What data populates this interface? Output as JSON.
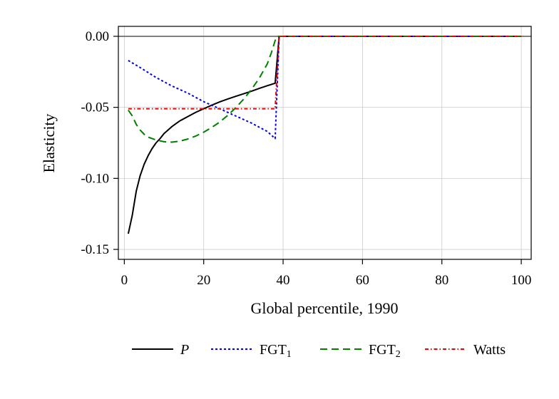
{
  "chart_data": {
    "type": "line",
    "title": "",
    "xlabel": "Global percentile, 1990",
    "ylabel": "Elasticity",
    "xlim": [
      -1.5,
      102.5
    ],
    "ylim": [
      -0.157,
      0.007
    ],
    "xticks": [
      0,
      20,
      40,
      60,
      80,
      100
    ],
    "xtick_labels": [
      "0",
      "20",
      "40",
      "60",
      "80",
      "100"
    ],
    "yticks": [
      0.0,
      -0.05,
      -0.1,
      -0.15
    ],
    "ytick_labels": [
      "0.00",
      "-0.05",
      "-0.10",
      "-0.15"
    ],
    "grid": true,
    "reference_line_y": 0,
    "legend_position": "bottom",
    "series": [
      {
        "name": "P",
        "name_style": "italic",
        "color": "#000000",
        "dash": "solid",
        "points": [
          [
            1,
            -0.139
          ],
          [
            2,
            -0.126
          ],
          [
            3,
            -0.109
          ],
          [
            4,
            -0.098
          ],
          [
            5,
            -0.09
          ],
          [
            6,
            -0.084
          ],
          [
            7,
            -0.079
          ],
          [
            8,
            -0.075
          ],
          [
            9,
            -0.072
          ],
          [
            10,
            -0.0685
          ],
          [
            12,
            -0.0635
          ],
          [
            14,
            -0.0595
          ],
          [
            16,
            -0.0565
          ],
          [
            18,
            -0.0535
          ],
          [
            20,
            -0.051
          ],
          [
            22,
            -0.0485
          ],
          [
            24,
            -0.0462
          ],
          [
            26,
            -0.0442
          ],
          [
            28,
            -0.0423
          ],
          [
            30,
            -0.0405
          ],
          [
            32,
            -0.0387
          ],
          [
            34,
            -0.0367
          ],
          [
            36,
            -0.0348
          ],
          [
            38,
            -0.033
          ],
          [
            39,
            0.0
          ],
          [
            100,
            0.0
          ]
        ]
      },
      {
        "name": "FGT",
        "name_sub": "1",
        "color": "#0000ee",
        "dash": "short-dash",
        "points": [
          [
            1,
            -0.017
          ],
          [
            4,
            -0.022
          ],
          [
            8,
            -0.029
          ],
          [
            12,
            -0.035
          ],
          [
            16,
            -0.04
          ],
          [
            20,
            -0.046
          ],
          [
            24,
            -0.051
          ],
          [
            28,
            -0.056
          ],
          [
            32,
            -0.061
          ],
          [
            36,
            -0.067
          ],
          [
            38,
            -0.072
          ],
          [
            39,
            0.0
          ],
          [
            100,
            0.0
          ]
        ]
      },
      {
        "name": "FGT",
        "name_sub": "2",
        "color": "#008000",
        "dash": "long-dash",
        "points": [
          [
            1,
            -0.052
          ],
          [
            2,
            -0.056
          ],
          [
            3,
            -0.062
          ],
          [
            4,
            -0.066
          ],
          [
            5,
            -0.069
          ],
          [
            6,
            -0.071
          ],
          [
            8,
            -0.073
          ],
          [
            10,
            -0.0742
          ],
          [
            12,
            -0.0745
          ],
          [
            14,
            -0.0738
          ],
          [
            16,
            -0.0723
          ],
          [
            18,
            -0.0702
          ],
          [
            20,
            -0.0675
          ],
          [
            22,
            -0.0642
          ],
          [
            24,
            -0.0604
          ],
          [
            26,
            -0.0558
          ],
          [
            28,
            -0.0505
          ],
          [
            30,
            -0.0444
          ],
          [
            32,
            -0.0375
          ],
          [
            34,
            -0.0295
          ],
          [
            36,
            -0.0195
          ],
          [
            37,
            -0.012
          ],
          [
            38,
            -0.003
          ],
          [
            38.5,
            0.0
          ],
          [
            100,
            0.0
          ]
        ]
      },
      {
        "name": "Watts",
        "color": "#ee0000",
        "dash": "dash-dot",
        "points": [
          [
            1,
            -0.051
          ],
          [
            38,
            -0.051
          ],
          [
            39,
            0.0
          ],
          [
            100,
            0.0
          ]
        ]
      }
    ]
  }
}
